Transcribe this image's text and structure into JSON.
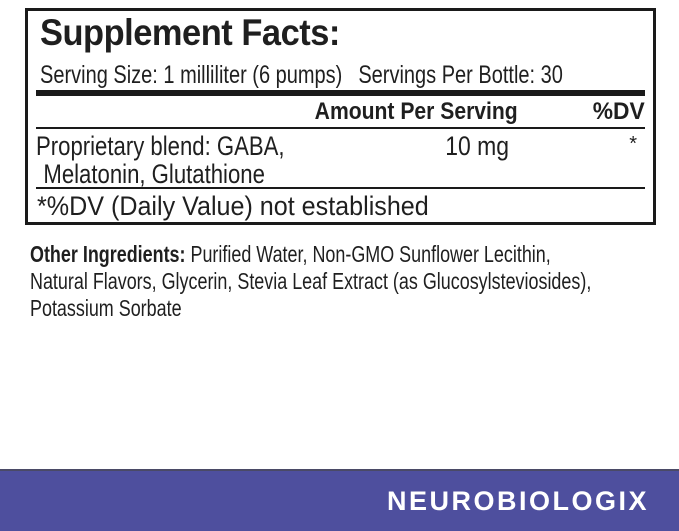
{
  "panel": {
    "title": "Supplement Facts:",
    "serving_size": "Serving Size: 1 milliliter (6 pumps)",
    "servings_per_bottle": "Servings Per Bottle: 30",
    "columns": {
      "amount": "Amount Per Serving",
      "dv": "%DV"
    },
    "rows": [
      {
        "name_line1": "Proprietary blend: GABA,",
        "name_line2": "Melatonin, Glutathione",
        "amount": "10 mg",
        "dv": "*"
      }
    ],
    "footnote": "*%DV (Daily Value) not established"
  },
  "other_ingredients": {
    "label": "Other Ingredients:",
    "line1_rest": " Purified Water, Non-GMO Sunflower Lecithin,",
    "line2": "Natural Flavors, Glycerin, Stevia Leaf Extract (as Glucosylsteviosides),",
    "line3": "Potassium Sorbate"
  },
  "brand": {
    "name": "NEUROBIOLOGIX"
  },
  "colors": {
    "banner": "#4e4f9e",
    "brand_text": "#ffffff",
    "text": "#1f1f1f",
    "border": "#1a1a1a",
    "background": "#ffffff"
  }
}
